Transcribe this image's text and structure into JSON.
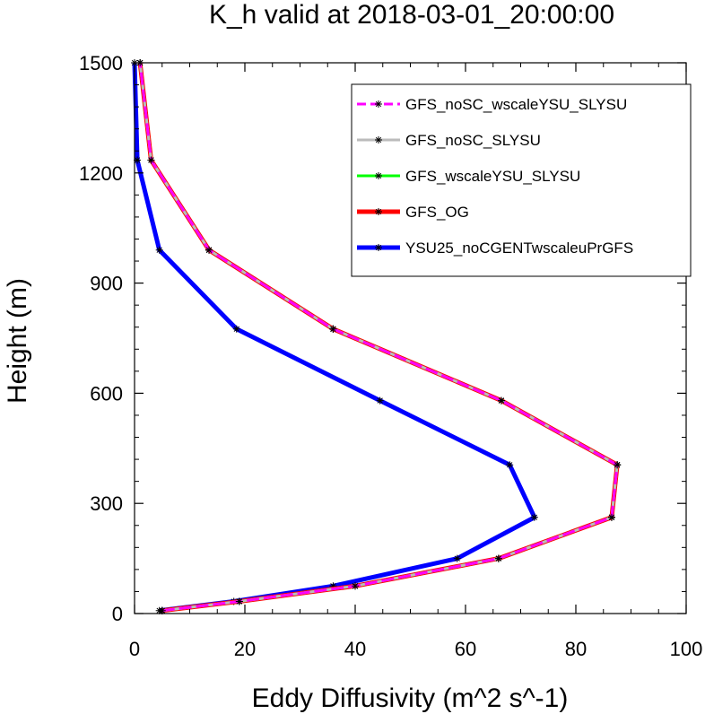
{
  "chart_data": {
    "type": "line",
    "title": "K_h valid at 2018-03-01_20:00:00",
    "xlabel": "Eddy Diffusivity (m^2 s^-1)",
    "ylabel": "Height (m)",
    "xlim": [
      0,
      100
    ],
    "ylim": [
      0,
      1500
    ],
    "xticks": [
      0,
      20,
      40,
      60,
      80,
      100
    ],
    "yticks": [
      0,
      300,
      600,
      900,
      1200,
      1500
    ],
    "xtick_labels": [
      "0",
      "20",
      "40",
      "60",
      "80",
      "100"
    ],
    "ytick_labels": [
      "0",
      "300",
      "600",
      "900",
      "1200",
      "1500"
    ],
    "grid": false,
    "legend_position": "top-right",
    "y": [
      8,
      33,
      75,
      150,
      262,
      405,
      580,
      775,
      990,
      1235,
      1500
    ],
    "series": [
      {
        "name": "GFS_noSC_wscaleYSU_SLYSU",
        "color": "#ff00ff",
        "dash": "dashed",
        "width": 3,
        "x": [
          5,
          19,
          40,
          66,
          86.5,
          87.5,
          66.5,
          36,
          13.5,
          3,
          1
        ]
      },
      {
        "name": "GFS_noSC_SLYSU",
        "color": "#bbbbbb",
        "dash": "solid",
        "width": 3,
        "x": [
          5,
          19,
          40,
          66,
          86.5,
          87.5,
          66.5,
          36,
          13.5,
          3,
          1
        ]
      },
      {
        "name": "GFS_wscaleYSU_SLYSU",
        "color": "#00ff00",
        "dash": "solid",
        "width": 3,
        "x": [
          5,
          19,
          40,
          66,
          86.5,
          87.5,
          66.5,
          36,
          13.5,
          3,
          1
        ]
      },
      {
        "name": "GFS_OG",
        "color": "#ff0000",
        "dash": "solid",
        "width": 5,
        "x": [
          5,
          19,
          40,
          66,
          86.5,
          87.5,
          66.5,
          36,
          13.5,
          3,
          1
        ]
      },
      {
        "name": "YSU25_noCGENTwscaleuPrGFS",
        "color": "#0000ff",
        "dash": "solid",
        "width": 5,
        "x": [
          4.5,
          18,
          36,
          58.5,
          72.5,
          68,
          44.5,
          18.5,
          4.5,
          0.5,
          0
        ]
      }
    ]
  }
}
